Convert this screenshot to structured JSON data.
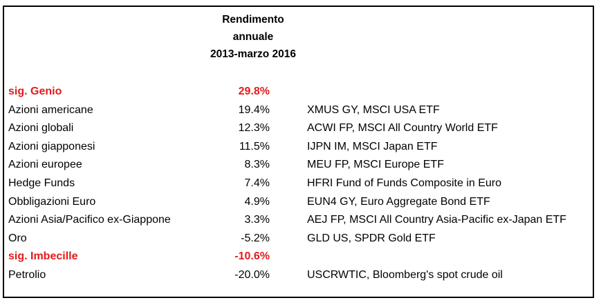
{
  "header": {
    "line1": "Rendimento",
    "line2": "annuale",
    "line3": "2013-marzo 2016"
  },
  "highlight_color": "#e31b1b",
  "rows": [
    {
      "name": "sig. Genio",
      "value": "29.8%",
      "desc": "",
      "highlight": true
    },
    {
      "name": "Azioni americane",
      "value": "19.4%",
      "desc": "XMUS GY, MSCI USA ETF",
      "highlight": false
    },
    {
      "name": "Azioni globali",
      "value": "12.3%",
      "desc": "ACWI FP, MSCI All Country World ETF",
      "highlight": false
    },
    {
      "name": "Azioni giapponesi",
      "value": "11.5%",
      "desc": "IJPN IM, MSCI Japan ETF",
      "highlight": false
    },
    {
      "name": "Azioni europee",
      "value": "8.3%",
      "desc": "MEU FP, MSCI Europe ETF",
      "highlight": false
    },
    {
      "name": "Hedge Funds",
      "value": "7.4%",
      "desc": "HFRI Fund of Funds Composite in Euro",
      "highlight": false
    },
    {
      "name": "Obbligazioni Euro",
      "value": "4.9%",
      "desc": "EUN4 GY, Euro Aggregate Bond ETF",
      "highlight": false
    },
    {
      "name": "Azioni Asia/Pacifico ex-Giappone",
      "value": "3.3%",
      "desc": "AEJ FP, MSCI All Country Asia-Pacific ex-Japan ETF",
      "highlight": false
    },
    {
      "name": "Oro",
      "value": "-5.2%",
      "desc": "GLD US, SPDR Gold ETF",
      "highlight": false
    },
    {
      "name": "sig. Imbecille",
      "value": "-10.6%",
      "desc": "",
      "highlight": true
    },
    {
      "name": "Petrolio",
      "value": "-20.0%",
      "desc": "USCRWTIC, Bloomberg's spot crude oil",
      "highlight": false
    }
  ]
}
